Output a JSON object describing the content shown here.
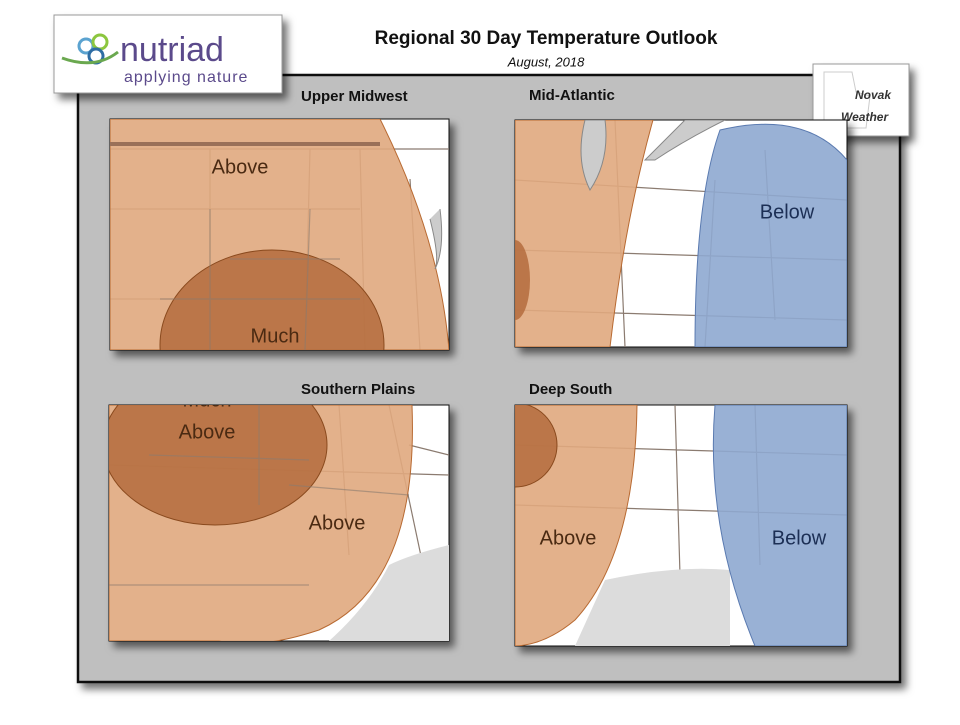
{
  "header": {
    "title": "Regional 30 Day Temperature Outlook",
    "subtitle": "August, 2018"
  },
  "logos": {
    "nutriad": {
      "name": "nutriad",
      "tagline": "applying nature"
    },
    "novak": {
      "line1": "Novak",
      "line2": "Weather"
    }
  },
  "panels": [
    {
      "title": "Upper Midwest",
      "labels": [
        "Above",
        "Much"
      ]
    },
    {
      "title": "Mid-Atlantic",
      "labels": [
        "Below"
      ]
    },
    {
      "title": "Southern Plains",
      "labels": [
        "Much",
        "Above",
        "Above"
      ]
    },
    {
      "title": "Deep South",
      "labels": [
        "Above",
        "Below"
      ]
    }
  ]
}
